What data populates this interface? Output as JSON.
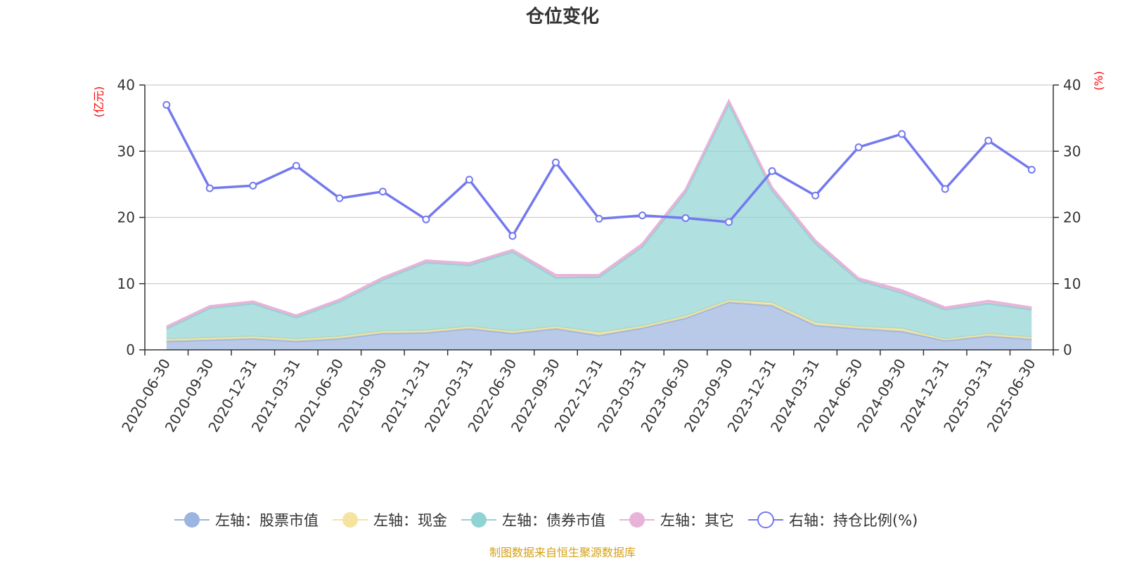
{
  "chart_data": {
    "type": "area",
    "title": "仓位变化",
    "left_axis_unit": "(亿元)",
    "right_axis_unit": "(%)",
    "ylim_left": [
      0,
      40
    ],
    "ylim_right": [
      0,
      40
    ],
    "left_ticks": [
      "0",
      "10",
      "20",
      "30",
      "40"
    ],
    "right_ticks": [
      "0",
      "10",
      "20",
      "30",
      "40"
    ],
    "grid": true,
    "legend_position": "bottom",
    "source": "制图数据来自恒生聚源数据库",
    "categories": [
      "2020-06-30",
      "2020-09-30",
      "2020-12-31",
      "2021-03-31",
      "2021-06-30",
      "2021-09-30",
      "2021-12-31",
      "2022-03-31",
      "2022-06-30",
      "2022-09-30",
      "2022-12-31",
      "2023-03-31",
      "2023-06-30",
      "2023-09-30",
      "2023-12-31",
      "2024-03-31",
      "2024-06-30",
      "2024-09-30",
      "2024-12-31",
      "2025-03-31",
      "2025-06-30"
    ],
    "series": [
      {
        "name": "左轴：股票市值",
        "axis": "left",
        "kind": "stacked-area",
        "color": "#9bb4e0",
        "values": [
          1.3,
          1.5,
          1.7,
          1.3,
          1.7,
          2.5,
          2.6,
          3.2,
          2.5,
          3.2,
          2.2,
          3.3,
          4.8,
          7.2,
          6.7,
          3.7,
          3.2,
          2.8,
          1.4,
          2.1,
          1.6
        ]
      },
      {
        "name": "左轴：现金",
        "axis": "left",
        "kind": "stacked-area",
        "color": "#f5e3a0",
        "values": [
          0.3,
          0.3,
          0.3,
          0.3,
          0.3,
          0.3,
          0.3,
          0.3,
          0.3,
          0.3,
          0.4,
          0.3,
          0.3,
          0.3,
          0.4,
          0.4,
          0.3,
          0.4,
          0.2,
          0.3,
          0.3
        ]
      },
      {
        "name": "左轴：债券市值",
        "axis": "left",
        "kind": "stacked-area",
        "color": "#8fd3d3",
        "values": [
          1.6,
          4.5,
          5.0,
          3.3,
          5.3,
          7.8,
          10.3,
          9.3,
          12.0,
          7.4,
          8.4,
          12.0,
          18.7,
          29.7,
          17.0,
          12.0,
          7.0,
          5.4,
          4.5,
          4.6,
          4.2
        ]
      },
      {
        "name": "左轴：其它",
        "axis": "left",
        "kind": "stacked-area",
        "color": "#e8b3d8",
        "values": [
          0.3,
          0.3,
          0.3,
          0.3,
          0.3,
          0.3,
          0.3,
          0.3,
          0.3,
          0.4,
          0.3,
          0.4,
          0.4,
          0.4,
          0.4,
          0.4,
          0.3,
          0.4,
          0.3,
          0.4,
          0.3
        ]
      },
      {
        "name": "右轴：持仓比例(%)",
        "axis": "right",
        "kind": "line",
        "color": "#7379ee",
        "values": [
          37.0,
          24.4,
          24.8,
          27.8,
          22.9,
          23.9,
          19.7,
          25.7,
          17.2,
          28.3,
          19.8,
          20.3,
          19.9,
          19.3,
          27.0,
          23.3,
          30.6,
          32.6,
          24.3,
          31.6,
          27.2
        ]
      }
    ]
  }
}
